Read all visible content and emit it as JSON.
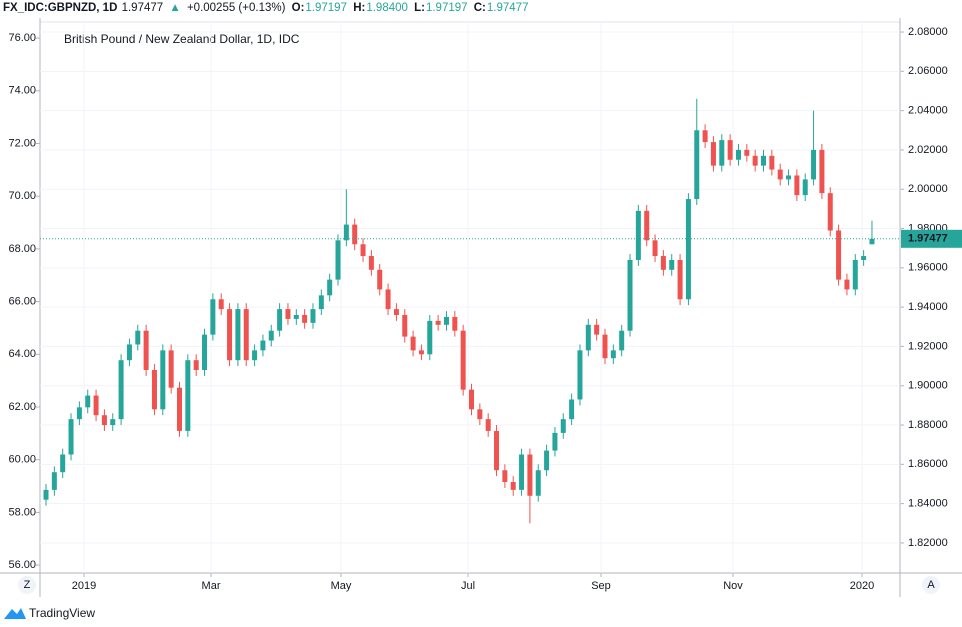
{
  "header": {
    "symbol": "FX_IDC:GBPNZD, 1D",
    "last": "1.97477",
    "arrow": "▲",
    "change": "+0.00255 (+0.13%)",
    "open_label": "O:",
    "open": "1.97197",
    "high_label": "H:",
    "high": "1.98400",
    "low_label": "L:",
    "low": "1.97197",
    "close_label": "C:",
    "close": "1.97477"
  },
  "buttons": {
    "left": "Z",
    "right": "A"
  },
  "footer": {
    "brand": "TradingView"
  },
  "chart_data": {
    "type": "candlestick",
    "title": "British Pound / New Zealand Dollar, 1D, IDC",
    "up_color": "#26a69a",
    "down_color": "#ef5350",
    "grid": true,
    "xlim": [
      -0.72,
      102.36
    ],
    "xticks": [
      {
        "value": 4.55,
        "label": "2019"
      },
      {
        "value": 19.78,
        "label": "Mar"
      },
      {
        "value": 35.36,
        "label": "May"
      },
      {
        "value": 50.58,
        "label": "Jul"
      },
      {
        "value": 66.52,
        "label": "Sep"
      },
      {
        "value": 82.34,
        "label": "Nov"
      },
      {
        "value": 97.81,
        "label": "2020"
      }
    ],
    "ylim": [
      1.8047,
      2.0851
    ],
    "yticks": [
      {
        "value": 1.82,
        "label": "1.82000"
      },
      {
        "value": 1.84,
        "label": "1.84000"
      },
      {
        "value": 1.86,
        "label": "1.86000"
      },
      {
        "value": 1.88,
        "label": "1.88000"
      },
      {
        "value": 1.9,
        "label": "1.90000"
      },
      {
        "value": 1.92,
        "label": "1.92000"
      },
      {
        "value": 1.94,
        "label": "1.94000"
      },
      {
        "value": 1.96,
        "label": "1.96000"
      },
      {
        "value": 1.98,
        "label": "1.98000"
      },
      {
        "value": 2.0,
        "label": "2.00000"
      },
      {
        "value": 2.02,
        "label": "2.02000"
      },
      {
        "value": 2.04,
        "label": "2.04000"
      },
      {
        "value": 2.06,
        "label": "2.06000"
      },
      {
        "value": 2.08,
        "label": "2.08000"
      }
    ],
    "y2lim": [
      55.7,
      76.61
    ],
    "y2ticks": [
      {
        "value": 56,
        "label": "56.00"
      },
      {
        "value": 58,
        "label": "58.00"
      },
      {
        "value": 60,
        "label": "60.00"
      },
      {
        "value": 62,
        "label": "62.00"
      },
      {
        "value": 64,
        "label": "64.00"
      },
      {
        "value": 66,
        "label": "66.00"
      },
      {
        "value": 68,
        "label": "68.00"
      },
      {
        "value": 70,
        "label": "70.00"
      },
      {
        "value": 72,
        "label": "72.00"
      },
      {
        "value": 74,
        "label": "74.00"
      },
      {
        "value": 76,
        "label": "76.00"
      }
    ],
    "open": [
      1.842,
      1.847,
      1.856,
      1.865,
      1.883,
      1.889,
      1.895,
      1.885,
      1.88,
      1.883,
      1.913,
      1.921,
      1.928,
      1.908,
      1.888,
      1.918,
      1.899,
      1.877,
      1.913,
      1.908,
      1.926,
      1.944,
      1.939,
      1.913,
      1.939,
      1.913,
      1.918,
      1.923,
      1.928,
      1.939,
      1.934,
      1.936,
      1.932,
      1.939,
      1.946,
      1.954,
      1.974,
      1.982,
      1.972,
      1.966,
      1.959,
      1.949,
      1.939,
      1.936,
      1.925,
      1.918,
      1.916,
      1.933,
      1.931,
      1.935,
      1.928,
      1.898,
      1.888,
      1.883,
      1.877,
      1.857,
      1.851,
      1.847,
      1.865,
      1.844,
      1.857,
      1.867,
      1.876,
      1.883,
      1.893,
      1.918,
      1.931,
      1.926,
      1.914,
      1.918,
      1.928,
      1.964,
      1.989,
      1.974,
      1.966,
      1.959,
      1.964,
      1.944,
      1.995,
      2.03,
      2.024,
      2.012,
      2.025,
      2.015,
      2.02,
      2.017,
      2.012,
      2.017,
      2.01,
      2.005,
      2.007,
      1.997,
      2.005,
      2.02,
      1.998,
      1.979,
      1.954,
      1.949,
      1.964,
      1.97197
    ],
    "high": [
      1.85,
      1.859,
      1.868,
      1.886,
      1.892,
      1.898,
      1.898,
      1.888,
      1.886,
      1.916,
      1.924,
      1.931,
      1.931,
      1.911,
      1.921,
      1.921,
      1.902,
      1.916,
      1.916,
      1.929,
      1.947,
      1.947,
      1.942,
      1.942,
      1.942,
      1.921,
      1.926,
      1.931,
      1.942,
      1.942,
      1.939,
      1.939,
      1.942,
      1.949,
      1.957,
      1.977,
      2.0,
      1.985,
      1.975,
      1.969,
      1.962,
      1.952,
      1.942,
      1.939,
      1.928,
      1.921,
      1.936,
      1.936,
      1.938,
      1.938,
      1.931,
      1.901,
      1.891,
      1.886,
      1.88,
      1.86,
      1.854,
      1.868,
      1.868,
      1.86,
      1.87,
      1.879,
      1.886,
      1.896,
      1.921,
      1.934,
      1.934,
      1.929,
      1.921,
      1.931,
      1.967,
      1.992,
      1.992,
      1.977,
      1.969,
      1.967,
      1.967,
      1.998,
      2.046,
      2.033,
      2.027,
      2.028,
      2.028,
      2.023,
      2.023,
      2.02,
      2.02,
      2.02,
      2.013,
      2.01,
      2.01,
      2.008,
      2.04,
      2.023,
      2.001,
      1.982,
      1.957,
      1.967,
      1.969,
      1.984
    ],
    "low": [
      1.839,
      1.844,
      1.853,
      1.862,
      1.88,
      1.886,
      1.882,
      1.877,
      1.877,
      1.88,
      1.91,
      1.918,
      1.905,
      1.885,
      1.885,
      1.896,
      1.874,
      1.874,
      1.905,
      1.905,
      1.923,
      1.936,
      1.91,
      1.91,
      1.91,
      1.91,
      1.915,
      1.92,
      1.925,
      1.931,
      1.931,
      1.929,
      1.929,
      1.936,
      1.943,
      1.951,
      1.971,
      1.969,
      1.963,
      1.956,
      1.946,
      1.936,
      1.933,
      1.922,
      1.915,
      1.913,
      1.913,
      1.928,
      1.928,
      1.925,
      1.895,
      1.885,
      1.88,
      1.874,
      1.854,
      1.848,
      1.844,
      1.844,
      1.83,
      1.841,
      1.854,
      1.864,
      1.873,
      1.88,
      1.89,
      1.915,
      1.923,
      1.911,
      1.911,
      1.915,
      1.925,
      1.961,
      1.971,
      1.963,
      1.956,
      1.956,
      1.941,
      1.941,
      1.992,
      2.021,
      2.009,
      2.009,
      2.012,
      2.012,
      2.014,
      2.009,
      2.009,
      2.007,
      2.002,
      2.002,
      1.994,
      1.994,
      2.002,
      1.995,
      1.976,
      1.951,
      1.946,
      1.946,
      1.961,
      1.97197
    ],
    "close": [
      1.847,
      1.856,
      1.865,
      1.883,
      1.889,
      1.895,
      1.885,
      1.88,
      1.883,
      1.913,
      1.921,
      1.928,
      1.908,
      1.888,
      1.918,
      1.899,
      1.877,
      1.913,
      1.908,
      1.926,
      1.944,
      1.939,
      1.913,
      1.939,
      1.913,
      1.918,
      1.923,
      1.928,
      1.939,
      1.934,
      1.936,
      1.932,
      1.939,
      1.946,
      1.954,
      1.974,
      1.982,
      1.972,
      1.966,
      1.959,
      1.949,
      1.939,
      1.936,
      1.925,
      1.918,
      1.916,
      1.933,
      1.931,
      1.935,
      1.928,
      1.898,
      1.888,
      1.883,
      1.877,
      1.857,
      1.851,
      1.847,
      1.865,
      1.844,
      1.857,
      1.867,
      1.876,
      1.883,
      1.893,
      1.918,
      1.931,
      1.926,
      1.914,
      1.918,
      1.928,
      1.964,
      1.989,
      1.974,
      1.966,
      1.959,
      1.964,
      1.944,
      1.995,
      2.03,
      2.024,
      2.012,
      2.025,
      2.015,
      2.02,
      2.017,
      2.012,
      2.017,
      2.01,
      2.005,
      2.007,
      1.997,
      2.005,
      2.02,
      1.998,
      1.979,
      1.954,
      1.949,
      1.964,
      1.966,
      1.97477
    ]
  }
}
